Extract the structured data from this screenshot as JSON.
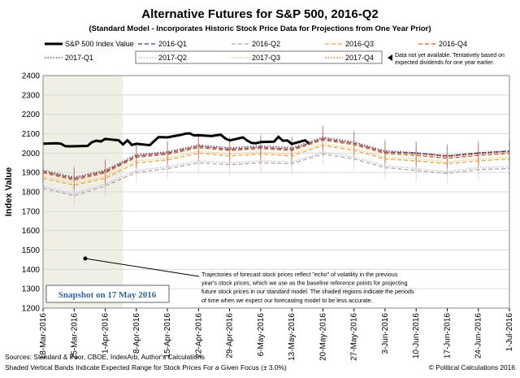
{
  "chart_data": {
    "type": "line",
    "title": "Alternative Futures for S&P 500, 2016-Q2",
    "subtitle": "(Standard Model - Incorporates Historic Stock Price Data for Projections from One Year Prior)",
    "ylabel": "Index Value",
    "ylim": [
      1200,
      2400
    ],
    "yticks": [
      1200,
      1300,
      1400,
      1500,
      1600,
      1700,
      1800,
      1900,
      2000,
      2100,
      2200,
      2300,
      2400
    ],
    "xdate_start": "18-Mar-2016",
    "xdate_end": "1-Jul-2016",
    "xtick_labels": [
      "18-Mar-2016",
      "25-Mar-2016",
      "1-Apr-2016",
      "8-Apr-2016",
      "15-Apr-2016",
      "22-Apr-2016",
      "29-Apr-2016",
      "6-May-2016",
      "13-May-2016",
      "20-May-2016",
      "27-May-2016",
      "3-Jun-2016",
      "10-Jun-2016",
      "17-Jun-2016",
      "24-Jun-2016",
      "1-Jul-2016"
    ],
    "grid": true,
    "legend_position": "top",
    "shaded_region": {
      "from": "18-Mar-2016",
      "to": "5-Apr-2016"
    },
    "snapshot_label": "Snapshot on 17 May 2016",
    "legend_note": "Data not yet available. Tentatively based on expected dividends for one year earlier.",
    "annotation": "Trajectories of forecast stock prices reflect \"echo\" of volatility in the previous year's stock prices, which we use as the baseline reference points for projecting future stock prices in our standard model. The shaded regions indicate the periods of time when we expect our forecasting model to be less accurate.",
    "band_pct": 3.0,
    "series": [
      {
        "name": "S&P 500 Index Value",
        "color": "#000000",
        "style": "solid-thick",
        "points": [
          [
            "18-Mar-2016",
            2049
          ],
          [
            "21-Mar-2016",
            2051
          ],
          [
            "22-Mar-2016",
            2049
          ],
          [
            "23-Mar-2016",
            2036
          ],
          [
            "24-Mar-2016",
            2035
          ],
          [
            "28-Mar-2016",
            2037
          ],
          [
            "29-Mar-2016",
            2056
          ],
          [
            "30-Mar-2016",
            2064
          ],
          [
            "31-Mar-2016",
            2060
          ],
          [
            "1-Apr-2016",
            2073
          ],
          [
            "4-Apr-2016",
            2066
          ],
          [
            "5-Apr-2016",
            2045
          ],
          [
            "6-Apr-2016",
            2066
          ],
          [
            "7-Apr-2016",
            2042
          ],
          [
            "8-Apr-2016",
            2048
          ],
          [
            "11-Apr-2016",
            2041
          ],
          [
            "12-Apr-2016",
            2062
          ],
          [
            "13-Apr-2016",
            2082
          ],
          [
            "14-Apr-2016",
            2082
          ],
          [
            "15-Apr-2016",
            2081
          ],
          [
            "18-Apr-2016",
            2094
          ],
          [
            "19-Apr-2016",
            2100
          ],
          [
            "20-Apr-2016",
            2102
          ],
          [
            "21-Apr-2016",
            2091
          ],
          [
            "22-Apr-2016",
            2092
          ],
          [
            "25-Apr-2016",
            2088
          ],
          [
            "26-Apr-2016",
            2092
          ],
          [
            "27-Apr-2016",
            2095
          ],
          [
            "28-Apr-2016",
            2076
          ],
          [
            "29-Apr-2016",
            2065
          ],
          [
            "2-May-2016",
            2081
          ],
          [
            "3-May-2016",
            2064
          ],
          [
            "4-May-2016",
            2052
          ],
          [
            "5-May-2016",
            2051
          ],
          [
            "6-May-2016",
            2057
          ],
          [
            "9-May-2016",
            2059
          ],
          [
            "10-May-2016",
            2084
          ],
          [
            "11-May-2016",
            2064
          ],
          [
            "12-May-2016",
            2065
          ],
          [
            "13-May-2016",
            2047
          ],
          [
            "16-May-2016",
            2066
          ],
          [
            "17-May-2016",
            2047
          ]
        ]
      },
      {
        "name": "2016-Q1",
        "color": "#2b3a8f",
        "style": "dashed",
        "points": [
          [
            "18-Mar-2016",
            1905
          ],
          [
            "25-Mar-2016",
            1868
          ],
          [
            "1-Apr-2016",
            1905
          ],
          [
            "8-Apr-2016",
            1985
          ],
          [
            "15-Apr-2016",
            2000
          ],
          [
            "22-Apr-2016",
            2035
          ],
          [
            "29-Apr-2016",
            2020
          ],
          [
            "6-May-2016",
            2030
          ],
          [
            "13-May-2016",
            2020
          ],
          [
            "20-May-2016",
            2075
          ],
          [
            "27-May-2016",
            2050
          ],
          [
            "3-Jun-2016",
            2005
          ],
          [
            "10-Jun-2016",
            2000
          ],
          [
            "17-Jun-2016",
            1985
          ],
          [
            "24-Jun-2016",
            2000
          ],
          [
            "1-Jul-2016",
            2010
          ]
        ]
      },
      {
        "name": "2016-Q2",
        "color": "#a8a8a8",
        "style": "dashed",
        "points": [
          [
            "18-Mar-2016",
            1818
          ],
          [
            "25-Mar-2016",
            1780
          ],
          [
            "1-Apr-2016",
            1830
          ],
          [
            "8-Apr-2016",
            1900
          ],
          [
            "15-Apr-2016",
            1920
          ],
          [
            "22-Apr-2016",
            1950
          ],
          [
            "29-Apr-2016",
            1940
          ],
          [
            "6-May-2016",
            1950
          ],
          [
            "13-May-2016",
            1945
          ],
          [
            "20-May-2016",
            1995
          ],
          [
            "27-May-2016",
            1970
          ],
          [
            "3-Jun-2016",
            1925
          ],
          [
            "10-Jun-2016",
            1910
          ],
          [
            "17-Jun-2016",
            1895
          ],
          [
            "24-Jun-2016",
            1915
          ],
          [
            "1-Jul-2016",
            1920
          ]
        ]
      },
      {
        "name": "2016-Q3",
        "color": "#f5a623",
        "style": "dashed",
        "points": [
          [
            "18-Mar-2016",
            1870
          ],
          [
            "25-Mar-2016",
            1835
          ],
          [
            "1-Apr-2016",
            1870
          ],
          [
            "8-Apr-2016",
            1950
          ],
          [
            "15-Apr-2016",
            1965
          ],
          [
            "22-Apr-2016",
            2000
          ],
          [
            "29-Apr-2016",
            1985
          ],
          [
            "6-May-2016",
            1995
          ],
          [
            "13-May-2016",
            1985
          ],
          [
            "20-May-2016",
            2040
          ],
          [
            "27-May-2016",
            2015
          ],
          [
            "3-Jun-2016",
            1970
          ],
          [
            "10-Jun-2016",
            1960
          ],
          [
            "17-Jun-2016",
            1945
          ],
          [
            "24-Jun-2016",
            1960
          ],
          [
            "1-Jul-2016",
            1970
          ]
        ]
      },
      {
        "name": "2016-Q4",
        "color": "#e8531f",
        "style": "dashed",
        "points": [
          [
            "18-Mar-2016",
            1898
          ],
          [
            "25-Mar-2016",
            1860
          ],
          [
            "1-Apr-2016",
            1898
          ],
          [
            "8-Apr-2016",
            1978
          ],
          [
            "15-Apr-2016",
            1993
          ],
          [
            "22-Apr-2016",
            2028
          ],
          [
            "29-Apr-2016",
            2013
          ],
          [
            "6-May-2016",
            2023
          ],
          [
            "13-May-2016",
            2013
          ],
          [
            "20-May-2016",
            2068
          ],
          [
            "27-May-2016",
            2043
          ],
          [
            "3-Jun-2016",
            1998
          ],
          [
            "10-Jun-2016",
            1988
          ],
          [
            "17-Jun-2016",
            1973
          ],
          [
            "24-Jun-2016",
            1988
          ],
          [
            "1-Jul-2016",
            1998
          ]
        ]
      },
      {
        "name": "2017-Q1",
        "color": "#4a3a6a",
        "style": "dotted",
        "points": [
          [
            "18-Mar-2016",
            1912
          ],
          [
            "25-Mar-2016",
            1875
          ],
          [
            "1-Apr-2016",
            1912
          ],
          [
            "8-Apr-2016",
            1992
          ],
          [
            "15-Apr-2016",
            2007
          ],
          [
            "22-Apr-2016",
            2042
          ],
          [
            "29-Apr-2016",
            2027
          ],
          [
            "6-May-2016",
            2037
          ],
          [
            "13-May-2016",
            2027
          ],
          [
            "20-May-2016",
            2082
          ],
          [
            "27-May-2016",
            2057
          ],
          [
            "3-Jun-2016",
            2012
          ],
          [
            "10-Jun-2016",
            2002
          ],
          [
            "17-Jun-2016",
            1987
          ],
          [
            "24-Jun-2016",
            2002
          ],
          [
            "1-Jul-2016",
            2012
          ]
        ]
      },
      {
        "name": "2017-Q2",
        "color": "#c9a8d8",
        "style": "dotted",
        "points": [
          [
            "18-Mar-2016",
            1828
          ],
          [
            "25-Mar-2016",
            1790
          ],
          [
            "1-Apr-2016",
            1840
          ],
          [
            "8-Apr-2016",
            1910
          ],
          [
            "15-Apr-2016",
            1930
          ],
          [
            "22-Apr-2016",
            1960
          ],
          [
            "29-Apr-2016",
            1950
          ],
          [
            "6-May-2016",
            1960
          ],
          [
            "13-May-2016",
            1955
          ],
          [
            "20-May-2016",
            2005
          ],
          [
            "27-May-2016",
            1980
          ],
          [
            "3-Jun-2016",
            1935
          ],
          [
            "10-Jun-2016",
            1920
          ],
          [
            "17-Jun-2016",
            1905
          ],
          [
            "24-Jun-2016",
            1925
          ],
          [
            "1-Jul-2016",
            1930
          ]
        ]
      },
      {
        "name": "2017-Q3",
        "color": "#f7b98a",
        "style": "dotted",
        "points": [
          [
            "18-Mar-2016",
            1880
          ],
          [
            "25-Mar-2016",
            1845
          ],
          [
            "1-Apr-2016",
            1880
          ],
          [
            "8-Apr-2016",
            1960
          ],
          [
            "15-Apr-2016",
            1975
          ],
          [
            "22-Apr-2016",
            2010
          ],
          [
            "29-Apr-2016",
            1995
          ],
          [
            "6-May-2016",
            2005
          ],
          [
            "13-May-2016",
            1995
          ],
          [
            "20-May-2016",
            2050
          ],
          [
            "27-May-2016",
            2025
          ],
          [
            "3-Jun-2016",
            1980
          ],
          [
            "10-Jun-2016",
            1970
          ],
          [
            "17-Jun-2016",
            1955
          ],
          [
            "24-Jun-2016",
            1970
          ],
          [
            "1-Jul-2016",
            1980
          ]
        ]
      },
      {
        "name": "2017-Q4",
        "color": "#d9661f",
        "style": "dotted",
        "points": [
          [
            "18-Mar-2016",
            1905
          ],
          [
            "25-Mar-2016",
            1868
          ],
          [
            "1-Apr-2016",
            1905
          ],
          [
            "8-Apr-2016",
            1985
          ],
          [
            "15-Apr-2016",
            2000
          ],
          [
            "22-Apr-2016",
            2035
          ],
          [
            "29-Apr-2016",
            2020
          ],
          [
            "6-May-2016",
            2030
          ],
          [
            "13-May-2016",
            2020
          ],
          [
            "20-May-2016",
            2075
          ],
          [
            "27-May-2016",
            2050
          ],
          [
            "3-Jun-2016",
            2005
          ],
          [
            "10-Jun-2016",
            1995
          ],
          [
            "17-Jun-2016",
            1980
          ],
          [
            "24-Jun-2016",
            1995
          ],
          [
            "1-Jul-2016",
            2005
          ]
        ]
      }
    ]
  },
  "footer": {
    "sources": "Sources: Standard & Poor, CBOE, IndexArb, Author's Calculations",
    "bands": "Shaded Vertical Bands Indicate Expected Range for Stock Prices For a Given Focus (± 3.0%)",
    "copyright": "© Political Calculations 2016"
  },
  "colors": {
    "shade": "#efefe6",
    "snapshot_text": "#3465a4",
    "grid": "#d9d9d9"
  }
}
